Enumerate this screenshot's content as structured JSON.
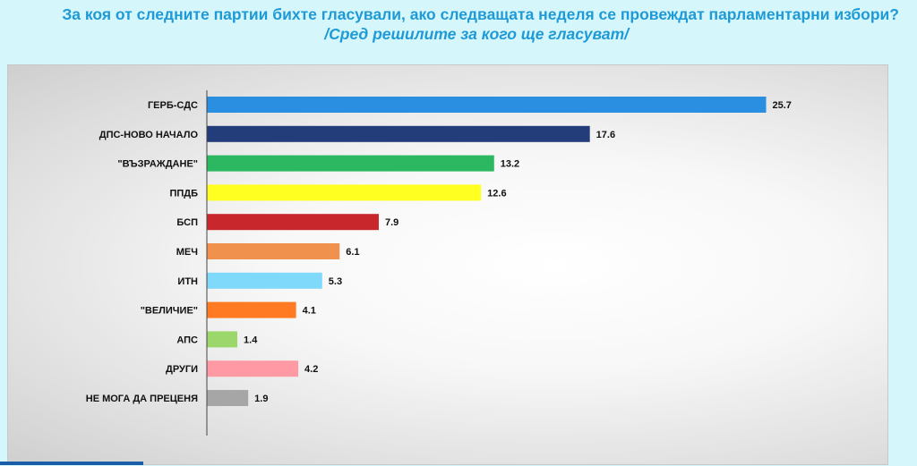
{
  "header": {
    "title": "За коя от следните партии бихте  гласували,  ако следващата неделя се провеждат парламентарни избори?",
    "subtitle": "/Сред решилите за кого ще гласуват/"
  },
  "chart_data": {
    "type": "bar",
    "orientation": "horizontal",
    "categories": [
      "ГЕРБ-СДС",
      "ДПС-НОВО НАЧАЛО",
      "\"ВЪЗРАЖДАНЕ\"",
      "ППДБ",
      "БСП",
      "МЕЧ",
      "ИТН",
      "\"ВЕЛИЧИЕ\"",
      "АПС",
      "ДРУГИ",
      "НЕ МОГА ДА ПРЕЦЕНЯ"
    ],
    "values": [
      25.7,
      17.6,
      13.2,
      12.6,
      7.9,
      6.1,
      5.3,
      4.1,
      1.4,
      4.2,
      1.9
    ],
    "value_labels": [
      "25.7",
      "17.6",
      "13.2",
      "12.6",
      "7.9",
      "6.1",
      "5.3",
      "4.1",
      "1.4",
      "4.2",
      "1.9"
    ],
    "colors": [
      "#2a8fe0",
      "#233d7a",
      "#2bb860",
      "#ffff22",
      "#c8282c",
      "#f0914e",
      "#7fd9fb",
      "#ff7a22",
      "#9bd76a",
      "#ff9aa4",
      "#a6a6a6"
    ],
    "xlim": [
      0,
      30
    ],
    "grid": false,
    "legend": "none"
  }
}
